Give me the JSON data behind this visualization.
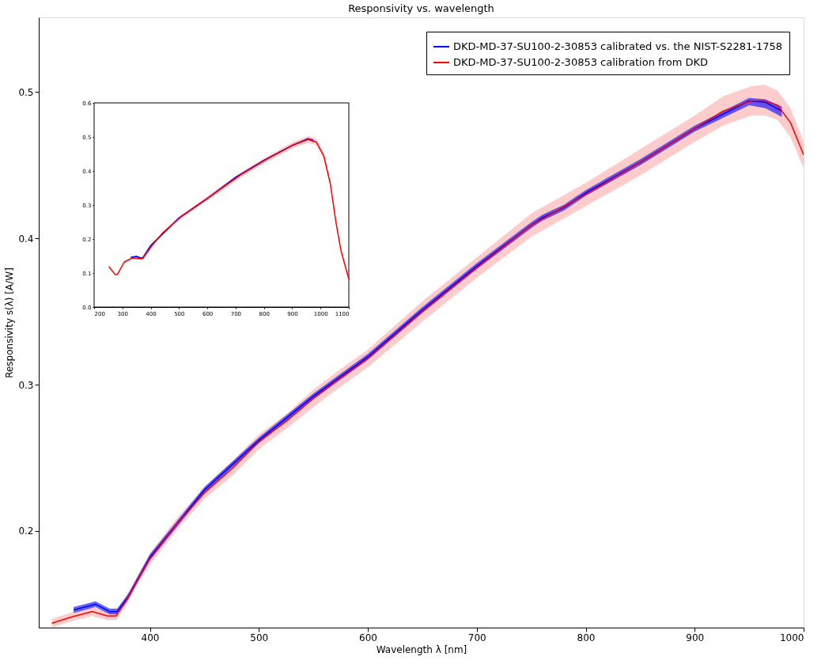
{
  "chart_data": [
    {
      "type": "line",
      "title": "Responsivity vs. wavelength",
      "xlabel": "Wavelength λ [nm]",
      "ylabel": "Responsivity s(λ) [A/W]",
      "xlim": [
        298,
        1000
      ],
      "ylim": [
        0.134,
        0.551
      ],
      "xticks": [
        400,
        500,
        600,
        700,
        800,
        900,
        1000
      ],
      "yticks": [
        0.2,
        0.3,
        0.4,
        0.5
      ],
      "grid": false,
      "legend": "top right",
      "line_style": "solid",
      "marker": "none",
      "series": [
        {
          "name": "DKD-MD-37-SU100-2-30853 calibrated vs. the NIST-S2281-1758",
          "color": "#0000ff",
          "x": [
            330,
            350,
            363,
            370,
            380,
            400,
            450,
            500,
            550,
            600,
            650,
            700,
            750,
            760,
            780,
            800,
            850,
            900,
            950,
            965,
            980
          ],
          "values": [
            0.146,
            0.15,
            0.145,
            0.145,
            0.155,
            0.182,
            0.228,
            0.262,
            0.292,
            0.319,
            0.351,
            0.381,
            0.409,
            0.414,
            0.421,
            0.431,
            0.452,
            0.475,
            0.494,
            0.493,
            0.487
          ],
          "lower": [
            0.144,
            0.148,
            0.143,
            0.143,
            0.153,
            0.18,
            0.226,
            0.26,
            0.29,
            0.317,
            0.349,
            0.379,
            0.407,
            0.412,
            0.419,
            0.429,
            0.45,
            0.473,
            0.491,
            0.489,
            0.483
          ],
          "upper": [
            0.148,
            0.152,
            0.147,
            0.147,
            0.157,
            0.184,
            0.23,
            0.264,
            0.294,
            0.321,
            0.353,
            0.383,
            0.411,
            0.416,
            0.423,
            0.433,
            0.454,
            0.477,
            0.496,
            0.495,
            0.49
          ]
        },
        {
          "name": "DKD-MD-37-SU100-2-30853 calibration from DKD",
          "color": "#ff0000",
          "x": [
            310,
            327,
            347,
            361,
            369,
            378,
            389,
            400,
            425,
            450,
            476,
            500,
            527,
            549,
            570,
            600,
            650,
            700,
            750,
            800,
            850,
            900,
            926,
            952,
            964,
            976,
            988,
            1000
          ],
          "values": [
            0.137,
            0.141,
            0.145,
            0.142,
            0.142,
            0.152,
            0.167,
            0.181,
            0.205,
            0.226,
            0.243,
            0.261,
            0.276,
            0.29,
            0.302,
            0.318,
            0.35,
            0.38,
            0.409,
            0.43,
            0.452,
            0.475,
            0.487,
            0.494,
            0.494,
            0.491,
            0.479,
            0.457
          ],
          "lower": [
            0.134,
            0.138,
            0.142,
            0.139,
            0.139,
            0.149,
            0.164,
            0.177,
            0.201,
            0.222,
            0.238,
            0.256,
            0.271,
            0.284,
            0.296,
            0.312,
            0.343,
            0.373,
            0.401,
            0.422,
            0.443,
            0.466,
            0.477,
            0.484,
            0.484,
            0.481,
            0.469,
            0.448
          ],
          "upper": [
            0.14,
            0.144,
            0.148,
            0.145,
            0.145,
            0.155,
            0.17,
            0.185,
            0.209,
            0.23,
            0.248,
            0.266,
            0.281,
            0.296,
            0.308,
            0.324,
            0.357,
            0.387,
            0.417,
            0.438,
            0.461,
            0.484,
            0.497,
            0.504,
            0.505,
            0.501,
            0.489,
            0.466
          ]
        }
      ]
    },
    {
      "type": "line",
      "xlim": [
        200,
        1100
      ],
      "ylim": [
        0,
        0.6
      ],
      "xticks": [
        200,
        300,
        400,
        500,
        600,
        700,
        800,
        900,
        1000,
        1100
      ],
      "yticks": [
        {
          "value": 0,
          "label": "0.0"
        },
        0.1,
        0.2,
        0.3,
        0.4,
        0.5,
        0.6
      ],
      "grid": false,
      "legend": false,
      "line_style": "solid",
      "marker": "none",
      "series": [
        {
          "color": "#0000ff",
          "x": [
            330,
            350,
            365,
            372,
            400,
            500,
            600,
            700,
            800,
            900,
            955,
            975
          ],
          "values": [
            0.146,
            0.149,
            0.144,
            0.145,
            0.181,
            0.262,
            0.319,
            0.381,
            0.431,
            0.475,
            0.494,
            0.489
          ],
          "lower": [
            0.144,
            0.147,
            0.142,
            0.143,
            0.179,
            0.26,
            0.317,
            0.379,
            0.429,
            0.473,
            0.491,
            0.485
          ],
          "upper": [
            0.148,
            0.151,
            0.146,
            0.147,
            0.183,
            0.264,
            0.321,
            0.383,
            0.433,
            0.477,
            0.497,
            0.493
          ]
        },
        {
          "color": "#ff0000",
          "x": [
            252,
            275,
            283,
            306,
            334,
            371,
            403,
            440,
            505,
            625,
            717,
            809,
            902,
            957,
            985,
            1012,
            1035,
            1054,
            1072,
            1100
          ],
          "values": [
            0.119,
            0.095,
            0.097,
            0.132,
            0.144,
            0.142,
            0.179,
            0.216,
            0.264,
            0.334,
            0.388,
            0.434,
            0.476,
            0.493,
            0.485,
            0.443,
            0.361,
            0.252,
            0.167,
            0.082
          ],
          "lower": [
            0.117,
            0.093,
            0.095,
            0.129,
            0.141,
            0.139,
            0.175,
            0.212,
            0.259,
            0.327,
            0.38,
            0.426,
            0.467,
            0.483,
            0.475,
            0.434,
            0.354,
            0.247,
            0.164,
            0.08
          ],
          "upper": [
            0.121,
            0.097,
            0.099,
            0.135,
            0.147,
            0.145,
            0.183,
            0.22,
            0.269,
            0.341,
            0.396,
            0.442,
            0.485,
            0.503,
            0.495,
            0.452,
            0.368,
            0.257,
            0.17,
            0.084
          ]
        }
      ]
    }
  ]
}
